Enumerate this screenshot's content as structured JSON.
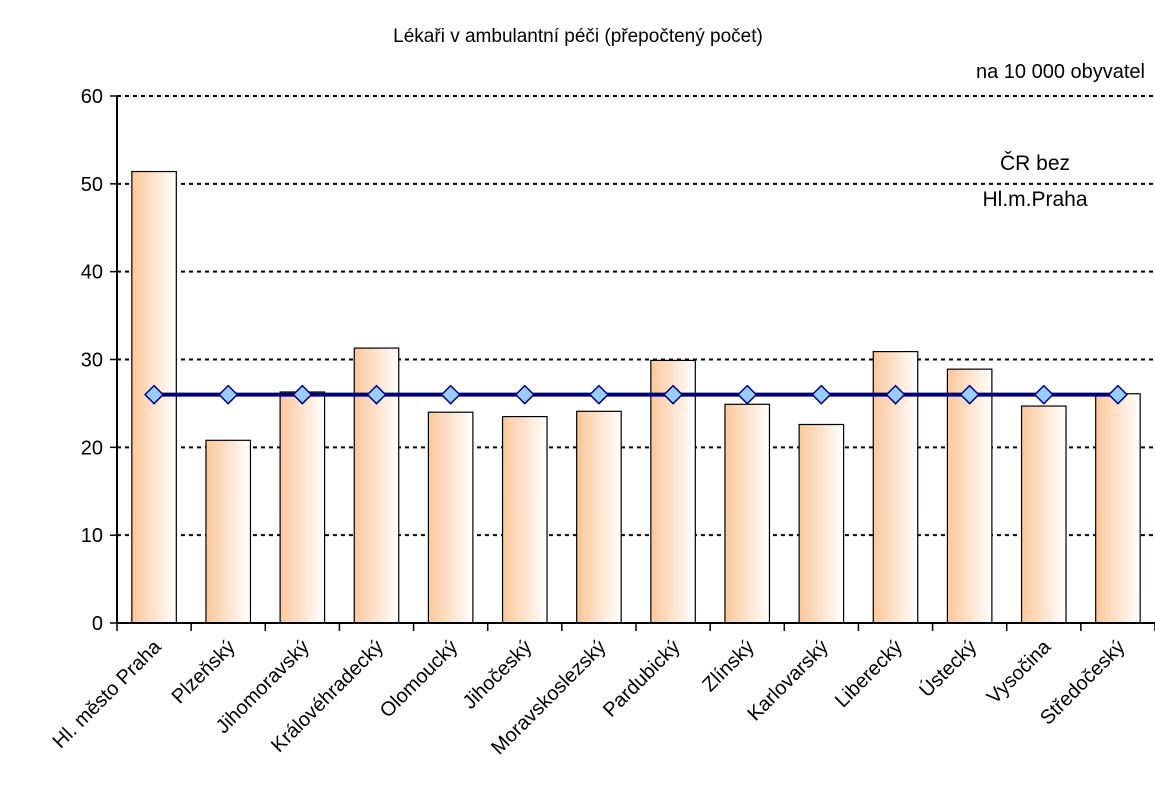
{
  "chart_data": {
    "type": "bar",
    "title": "Lékaři v ambulantní péči (přepočtený počet)",
    "unit_label": "na 10 000 obyvatel",
    "categories": [
      "Hl. město Praha",
      "Plzeňský",
      "Jihomoravský",
      "Královéhradecký",
      "Olomoucký",
      "Jihočeský",
      "Moravskoslezský",
      "Pardubický",
      "Zlínský",
      "Karlovarský",
      "Liberecký",
      "Ústecký",
      "Vysočina",
      "Středočeský"
    ],
    "values": [
      51.4,
      20.8,
      26.3,
      31.3,
      24.0,
      23.5,
      24.1,
      29.9,
      24.9,
      22.6,
      30.9,
      28.9,
      24.7,
      26.1
    ],
    "color": "#fbc79a",
    "series": [
      {
        "name": "ČR bez\nHl.m.Praha",
        "color": "#000080",
        "marker_color": "#99ccff",
        "values": [
          26,
          26,
          26,
          26,
          26,
          26,
          26,
          26,
          26,
          26,
          26,
          26,
          26,
          26
        ]
      }
    ],
    "ylim": [
      0,
      60
    ],
    "yticks": [
      0,
      10,
      20,
      30,
      40,
      50,
      60
    ],
    "grid": true
  }
}
